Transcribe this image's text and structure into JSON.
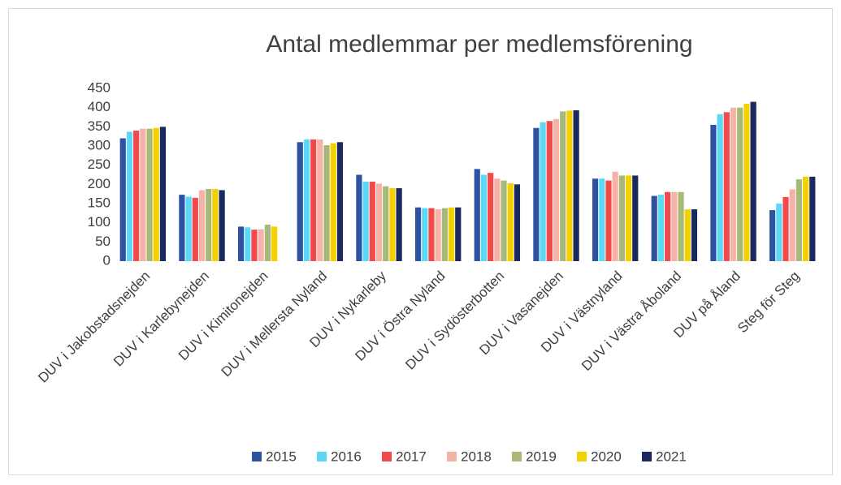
{
  "chart_data": {
    "type": "bar",
    "title": "Antal medlemmar per medlemsförening",
    "categories": [
      "DUV i Jakobstadsnejden",
      "DUV i Karlebynejden",
      "DUV i Kimitonejden",
      "DUV i Mellersta Nyland",
      "DUV i Nykarleby",
      "DUV i Östra Nyland",
      "DUV i Sydösterbotten",
      "DUV i Vasanejden",
      "DUV i Västnyland",
      "DUV i Västra Åboland",
      "DUV på Åland",
      "Steg för Steg"
    ],
    "series": [
      {
        "name": "2015",
        "color": "#2f52a0",
        "values": [
          320,
          173,
          90,
          310,
          225,
          140,
          240,
          347,
          215,
          170,
          355,
          133
        ]
      },
      {
        "name": "2016",
        "color": "#5ad8f5",
        "values": [
          337,
          168,
          88,
          317,
          207,
          138,
          225,
          362,
          215,
          173,
          383,
          150
        ]
      },
      {
        "name": "2017",
        "color": "#f04a4a",
        "values": [
          340,
          165,
          82,
          317,
          207,
          138,
          230,
          365,
          210,
          180,
          388,
          167
        ]
      },
      {
        "name": "2018",
        "color": "#f7b2a8",
        "values": [
          345,
          185,
          83,
          317,
          202,
          135,
          215,
          370,
          233,
          180,
          400,
          187
        ]
      },
      {
        "name": "2019",
        "color": "#a8b878",
        "values": [
          345,
          188,
          95,
          302,
          195,
          138,
          210,
          390,
          223,
          180,
          400,
          213
        ]
      },
      {
        "name": "2020",
        "color": "#f5d000",
        "values": [
          347,
          188,
          90,
          307,
          190,
          140,
          203,
          392,
          223,
          135,
          410,
          220
        ]
      },
      {
        "name": "2021",
        "color": "#1a2a5e",
        "values": [
          350,
          185,
          null,
          310,
          190,
          140,
          200,
          393,
          223,
          135,
          415,
          220
        ]
      }
    ],
    "ylim": [
      0,
      450
    ],
    "yticks": [
      0,
      50,
      100,
      150,
      200,
      250,
      300,
      350,
      400,
      450
    ],
    "grid": false,
    "legend": "bottom"
  }
}
